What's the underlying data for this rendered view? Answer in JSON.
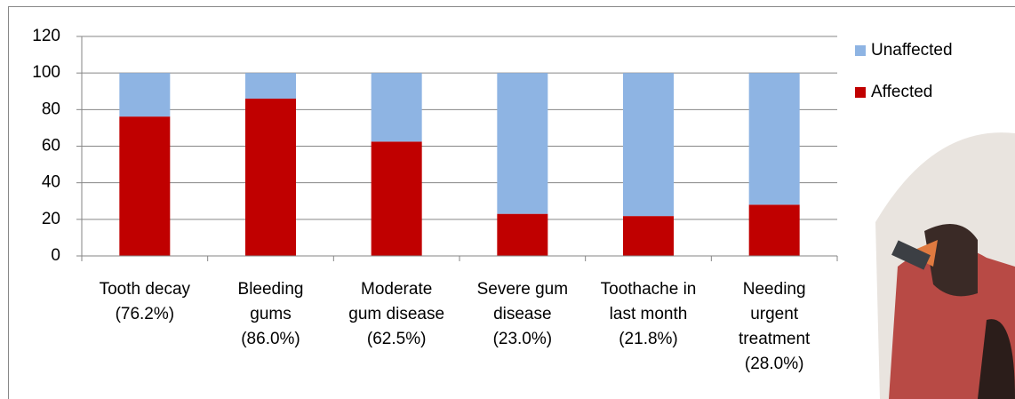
{
  "chart_data": {
    "type": "stacked-bar",
    "categories": [
      "Tooth decay\n(76.2%)",
      "Bleeding\ngums\n(86.0%)",
      "Moderate\ngum disease\n(62.5%)",
      "Severe gum\ndisease\n(23.0%)",
      "Toothache in\nlast month\n(21.8%)",
      "Needing\nurgent\ntreatment\n(28.0%)"
    ],
    "series": [
      {
        "name": "Affected",
        "color": "#c00000",
        "values": [
          76.2,
          86.0,
          62.5,
          23.0,
          21.8,
          28.0
        ]
      },
      {
        "name": "Unaffected",
        "color": "#8eb4e3",
        "values": [
          23.8,
          14.0,
          37.5,
          77.0,
          78.2,
          72.0
        ]
      }
    ],
    "ylim": [
      0,
      120
    ],
    "yticks": [
      0,
      20,
      40,
      60,
      80,
      100,
      120
    ],
    "grid": true,
    "legend": "right"
  }
}
